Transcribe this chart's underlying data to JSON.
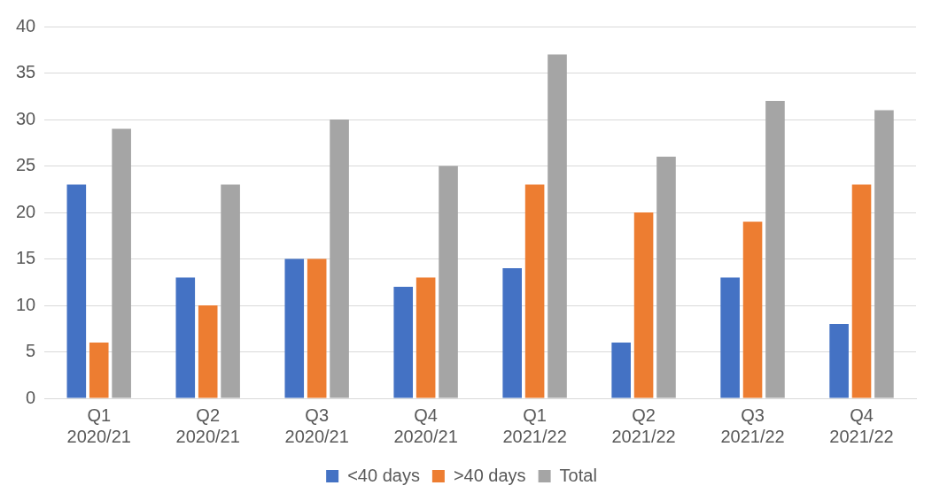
{
  "chart_data": {
    "type": "bar",
    "categories": [
      "Q1\n2020/21",
      "Q2\n2020/21",
      "Q3\n2020/21",
      "Q4\n2020/21",
      "Q1\n2021/22",
      "Q2\n2021/22",
      "Q3\n2021/22",
      "Q4\n2021/22"
    ],
    "series": [
      {
        "name": "<40 days",
        "color": "#4472c4",
        "values": [
          23,
          13,
          15,
          12,
          14,
          6,
          13,
          8
        ]
      },
      {
        "name": ">40 days",
        "color": "#ed7d31",
        "values": [
          6,
          10,
          15,
          13,
          23,
          20,
          19,
          23
        ]
      },
      {
        "name": "Total",
        "color": "#a5a5a5",
        "values": [
          29,
          23,
          30,
          25,
          37,
          26,
          32,
          31
        ]
      }
    ],
    "ylim": [
      0,
      40
    ],
    "yticks": [
      0,
      5,
      10,
      15,
      20,
      25,
      30,
      35,
      40
    ],
    "grid": "y",
    "legend": "bottom"
  }
}
